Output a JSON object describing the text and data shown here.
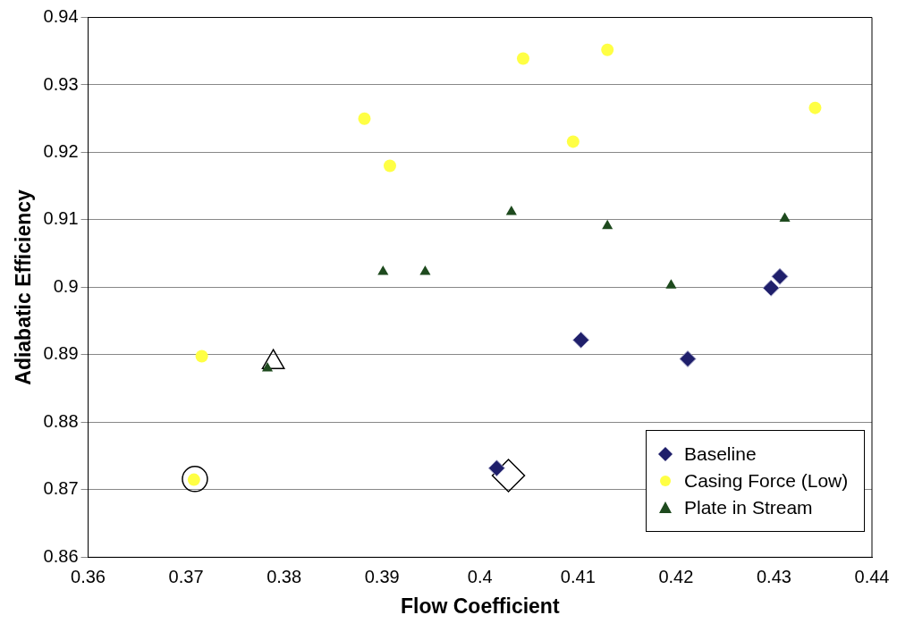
{
  "chart_data": {
    "type": "scatter",
    "xlabel": "Flow Coefficient",
    "ylabel": "Adiabatic Efficiency",
    "xlim": [
      0.36,
      0.44
    ],
    "xticks": [
      0.36,
      0.37,
      0.38,
      0.39,
      {
        "value": 0.4,
        "label": "0.4"
      },
      0.41,
      0.42,
      0.43,
      0.44
    ],
    "ylim": [
      0.86,
      0.94
    ],
    "yticks": [
      0.86,
      0.87,
      0.88,
      0.89,
      {
        "value": 0.9,
        "label": "0.9"
      },
      0.91,
      0.92,
      0.93,
      0.94
    ],
    "grid": "y",
    "legend": "bottom right",
    "series": [
      {
        "name": "Baseline",
        "color": "#1f1f6b",
        "marker": "diamond",
        "x": [
          0.4017,
          0.4103,
          0.4212,
          0.4297,
          0.4306
        ],
        "values": [
          0.8732,
          0.8922,
          0.8894,
          0.8999,
          0.9016
        ]
      },
      {
        "name": "Casing Force (Low)",
        "color": "#ffff44",
        "marker": "circle",
        "x": [
          0.3708,
          0.3716,
          0.3882,
          0.3908,
          0.4044,
          0.4095,
          0.413,
          0.4342
        ],
        "values": [
          0.8715,
          0.8898,
          0.925,
          0.918,
          0.9339,
          0.9216,
          0.9352,
          0.9266
        ]
      },
      {
        "name": "Plate in Stream",
        "color": "#1e4a1e",
        "marker": "triangle",
        "x": [
          0.3783,
          0.3901,
          0.3944,
          0.4032,
          0.413,
          0.4195,
          0.4311
        ],
        "values": [
          0.888,
          0.9023,
          0.9023,
          0.9112,
          0.9091,
          0.9003,
          0.9102
        ]
      },
      {
        "color": "#000000",
        "marker": "circle",
        "x": [
          0.3709
        ],
        "values": [
          0.8716
        ]
      },
      {
        "color": "#000000",
        "marker": "triangle",
        "x": [
          0.3789
        ],
        "values": [
          0.8889
        ]
      },
      {
        "color": "#000000",
        "marker": "diamond",
        "x": [
          0.4029
        ],
        "values": [
          0.8721
        ]
      }
    ]
  }
}
